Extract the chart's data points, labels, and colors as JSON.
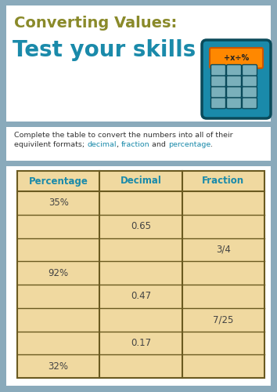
{
  "title_line1": "Converting Values:",
  "title_line2": "Test your skills",
  "title_line1_color": "#8a8a2a",
  "title_line2_color": "#1a8aaa",
  "bg_color": "#8aaabb",
  "header_bg": "#ffffff",
  "instr_bg": "#ffffff",
  "table_area_bg": "#ffffff",
  "table_bg": "#f0d9a0",
  "table_border_color": "#6a5a20",
  "table_header_text_color": "#1a8aaa",
  "table_text_color": "#444444",
  "col_headers": [
    "Percentage",
    "Decimal",
    "Fraction"
  ],
  "rows": [
    [
      "35%",
      "",
      ""
    ],
    [
      "",
      "0.65",
      ""
    ],
    [
      "",
      "",
      "3/4"
    ],
    [
      "92%",
      "",
      ""
    ],
    [
      "",
      "0.47",
      ""
    ],
    [
      "",
      "",
      "7/25"
    ],
    [
      "",
      "0.17",
      ""
    ],
    [
      "32%",
      "",
      ""
    ]
  ],
  "calc_body_color": "#1a8aaa",
  "calc_body_edge": "#0a4a5a",
  "calc_screen_color": "#ff8800",
  "calc_screen_edge": "#cc5500",
  "calc_screen_text": "+x÷%",
  "calc_btn_color": "#7ab0bb",
  "calc_btn_edge": "#0a4a5a",
  "instr_text": "Complete the table to convert the numbers into all of their\nequivilent formats; ",
  "instr_parts": [
    [
      "decimal",
      "#1a8aaa"
    ],
    [
      ", ",
      "#333333"
    ],
    [
      "fraction",
      "#1a8aaa"
    ],
    [
      " and ",
      "#333333"
    ],
    [
      "percentage",
      "#1a8aaa"
    ],
    [
      ".",
      "#333333"
    ]
  ]
}
